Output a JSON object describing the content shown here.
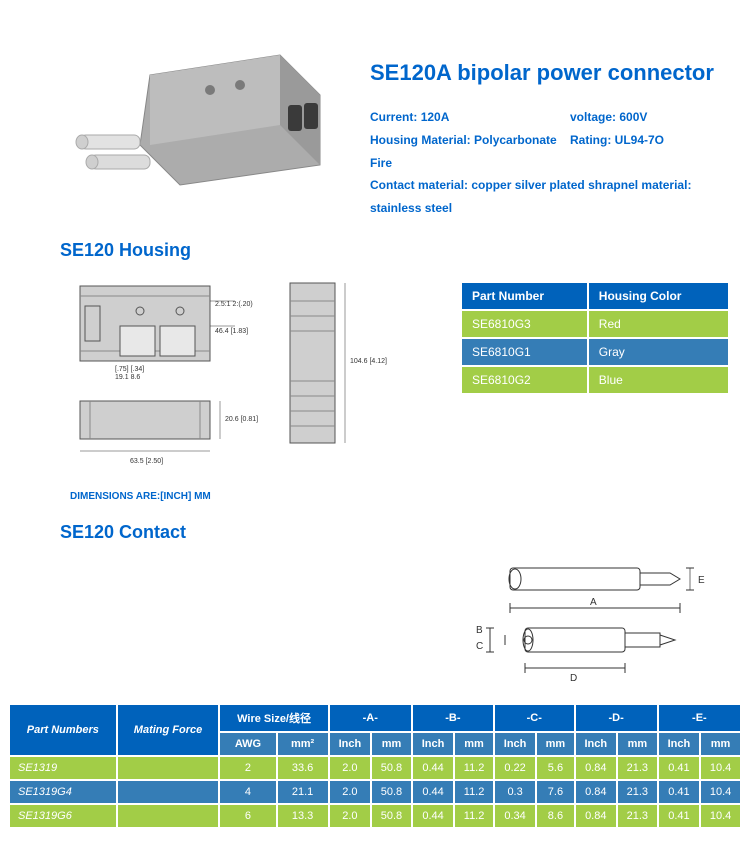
{
  "colors": {
    "blue_header": "#0062bb",
    "blue_mid": "#357db6",
    "green": "#a2cd47",
    "title": "#0066cc",
    "white": "#ffffff",
    "diagram_grey": "#bfbfbf",
    "diagram_grey_dark": "#9a9a9a",
    "metal": "#d8d8d8"
  },
  "title": "SE120A bipolar power connector",
  "specs": {
    "current_label": "Current:",
    "current_value": "120A",
    "voltage_label": "voltage:",
    "voltage_value": "600V",
    "housing_mat_label": "Housing Material:",
    "housing_mat_value": "Polycarbonate Fire",
    "rating_label": "Rating:",
    "rating_value": "UL94-7O",
    "contact_mat": "Contact material: copper silver plated shrapnel material: stainless steel"
  },
  "housing_section": "SE120 Housing",
  "housing_table": {
    "headers": [
      "Part Number",
      "Housing Color"
    ],
    "rows": [
      {
        "pn": "SE6810G3",
        "color": "Red",
        "bg": "#a2cd47"
      },
      {
        "pn": "SE6810G1",
        "color": "Gray",
        "bg": "#357db6"
      },
      {
        "pn": "SE6810G2",
        "color": "Blue",
        "bg": "#a2cd47"
      }
    ]
  },
  "housing_dims": {
    "a": "2.5:1\n2:(.20)",
    "b": "46.4\n[1.83]",
    "c": "[.75]  [.34]",
    "d": "19.1   8.6",
    "len": "104.6\n[4.12]",
    "width": "63.5\n[2.50]",
    "bot": "20.6\n[0.81]"
  },
  "dim_note": "DIMENSIONS ARE:[INCH] MM",
  "contact_section": "SE120 Contact",
  "contact_labels": {
    "A": "A",
    "B": "B",
    "C": "C",
    "D": "D",
    "E": "E"
  },
  "contact_table": {
    "top_headers": [
      "Part Numbers",
      "Mating Force",
      "Wire Size/线径",
      "-A-",
      "-B-",
      "-C-",
      "-D-",
      "-E-"
    ],
    "sub_headers": [
      "AWG",
      "mm²",
      "Inch",
      "mm",
      "Inch",
      "mm",
      "Inch",
      "mm",
      "Inch",
      "mm",
      "Inch",
      "mm"
    ],
    "rows": [
      {
        "pn": "SE1319",
        "mf": "",
        "bg": "#a2cd47",
        "cells": [
          "2",
          "33.6",
          "2.0",
          "50.8",
          "0.44",
          "11.2",
          "0.22",
          "5.6",
          "0.84",
          "21.3",
          "0.41",
          "10.4"
        ]
      },
      {
        "pn": "SE1319G4",
        "mf": "",
        "bg": "#357db6",
        "cells": [
          "4",
          "21.1",
          "2.0",
          "50.8",
          "0.44",
          "11.2",
          "0.3",
          "7.6",
          "0.84",
          "21.3",
          "0.41",
          "10.4"
        ]
      },
      {
        "pn": "SE1319G6",
        "mf": "",
        "bg": "#a2cd47",
        "cells": [
          "6",
          "13.3",
          "2.0",
          "50.8",
          "0.44",
          "11.2",
          "0.34",
          "8.6",
          "0.84",
          "21.3",
          "0.41",
          "10.4"
        ]
      }
    ]
  }
}
